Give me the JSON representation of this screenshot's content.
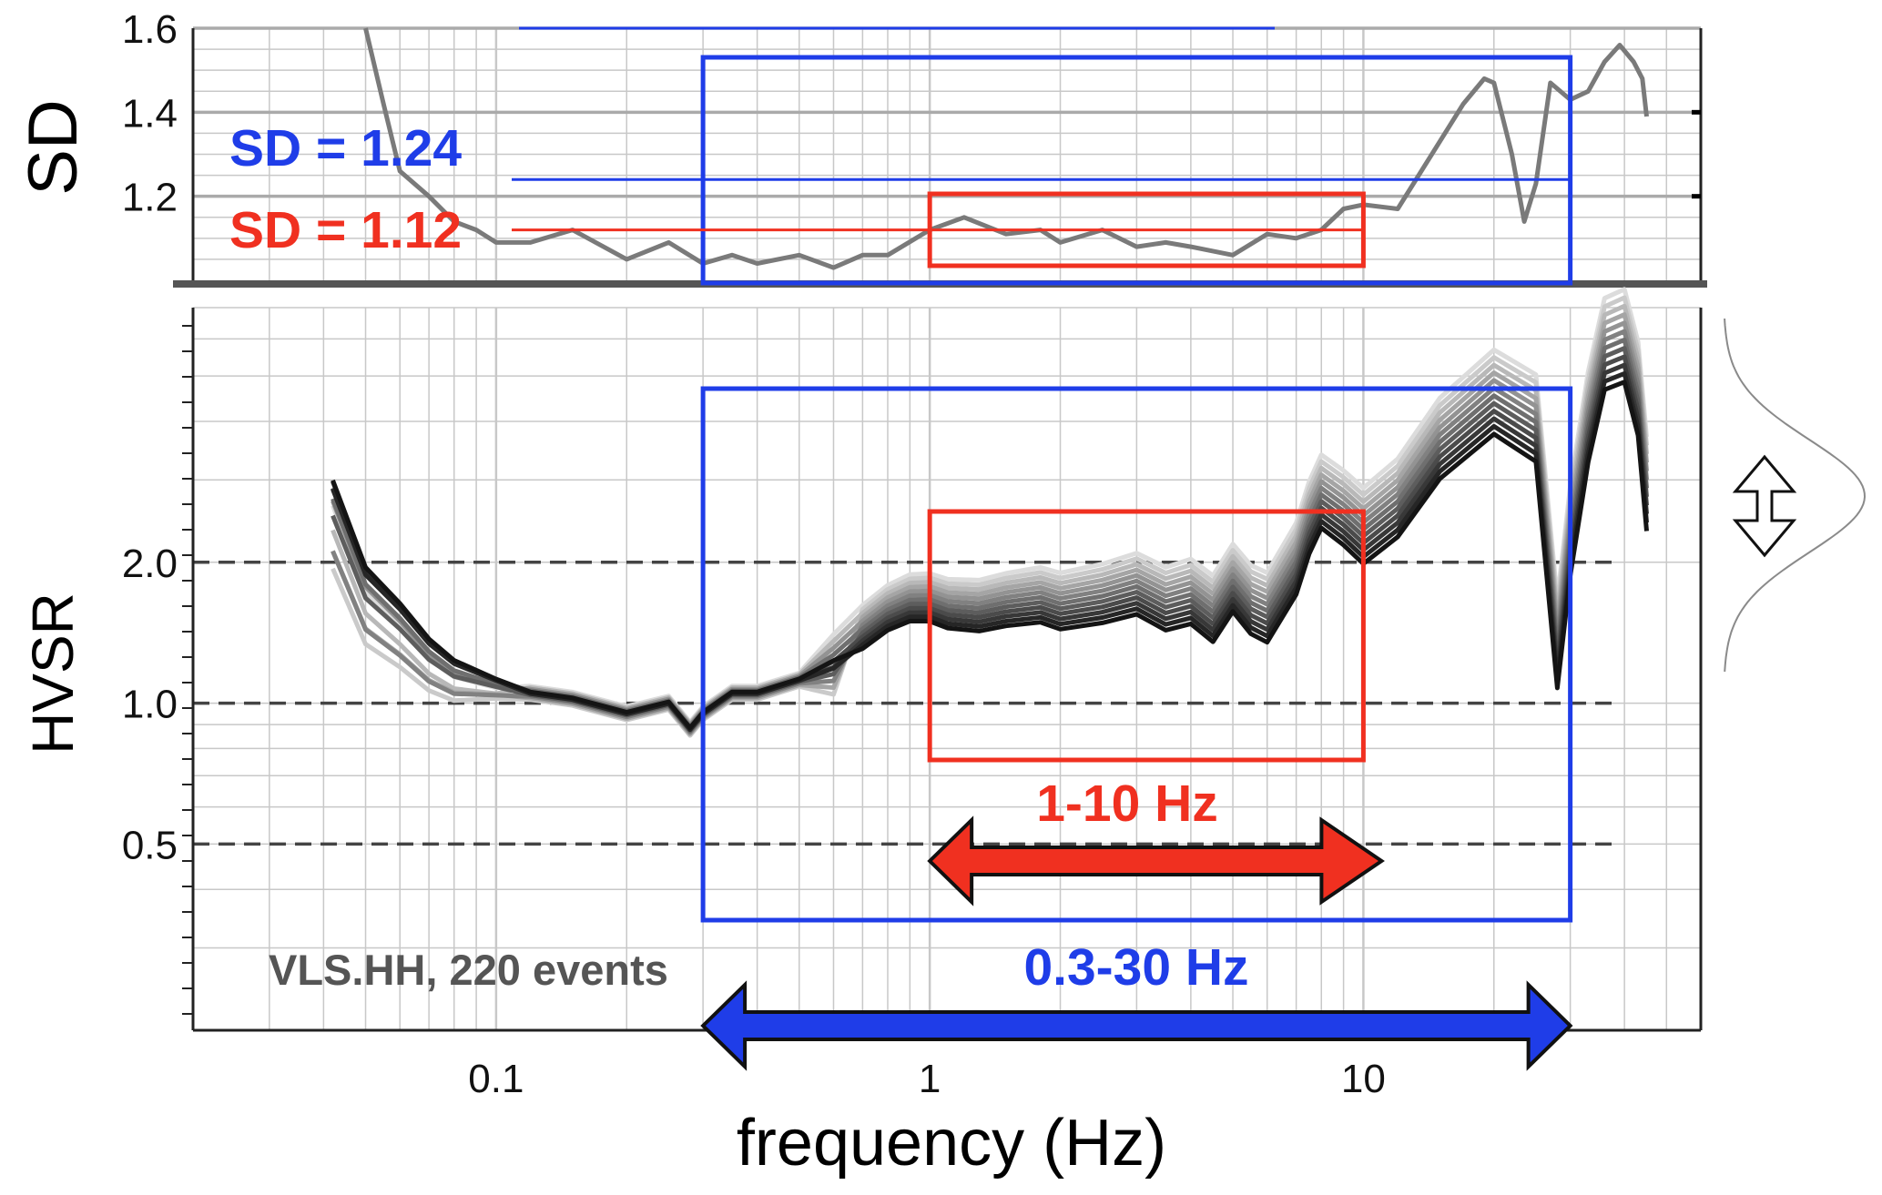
{
  "chart_data": [
    {
      "panel": "top",
      "type": "line",
      "ylabel": "SD",
      "xscale": "log",
      "xlim": [
        0.02,
        60
      ],
      "ylim": [
        1.0,
        1.6
      ],
      "yticks": [
        "1.2",
        "1.4",
        "1.6"
      ],
      "grid": true,
      "series": [
        {
          "x": [
            0.05,
            0.055,
            0.06,
            0.07,
            0.08,
            0.09,
            0.1,
            0.12,
            0.15,
            0.2,
            0.25,
            0.3,
            0.35,
            0.4,
            0.5,
            0.6,
            0.7,
            0.8,
            1.0,
            1.2,
            1.5,
            1.8,
            2.0,
            2.5,
            3.0,
            3.5,
            4.0,
            5.0,
            6.0,
            7.0,
            8.0,
            9.0,
            10.0,
            12.0,
            15.0,
            17.0,
            19.0,
            20.0,
            22.0,
            23.5,
            25.0,
            27.0,
            30.0,
            33.0,
            36.0,
            39.0,
            42.0,
            44.0,
            45.0
          ],
          "values": [
            1.6,
            1.42,
            1.26,
            1.2,
            1.14,
            1.12,
            1.09,
            1.09,
            1.12,
            1.05,
            1.09,
            1.04,
            1.06,
            1.04,
            1.06,
            1.03,
            1.06,
            1.06,
            1.12,
            1.15,
            1.11,
            1.12,
            1.09,
            1.12,
            1.08,
            1.09,
            1.08,
            1.06,
            1.11,
            1.1,
            1.12,
            1.17,
            1.18,
            1.17,
            1.33,
            1.42,
            1.48,
            1.47,
            1.3,
            1.14,
            1.23,
            1.47,
            1.43,
            1.45,
            1.52,
            1.56,
            1.52,
            1.48,
            1.39
          ]
        }
      ],
      "annotations": {
        "blue_label": "SD = 1.24",
        "blue_value": 1.24,
        "blue_band_hz": [
          0.3,
          30
        ],
        "red_label": "SD = 1.12",
        "red_value": 1.12,
        "red_band_hz": [
          1,
          10
        ]
      }
    },
    {
      "panel": "bottom",
      "type": "line",
      "ylabel": "HVSR",
      "xlabel": "frequency (Hz)",
      "xscale": "log",
      "yscale": "log",
      "xlim": [
        0.02,
        60
      ],
      "ylim": [
        0.2,
        7.0
      ],
      "xticks": [
        "0.1",
        "1",
        "10"
      ],
      "yticks": [
        "0.5",
        "1.0",
        "2.0"
      ],
      "reference_lines": [
        0.5,
        1.0,
        2.0
      ],
      "grid": true,
      "base_curve": {
        "x": [
          0.042,
          0.05,
          0.06,
          0.07,
          0.08,
          0.1,
          0.12,
          0.15,
          0.2,
          0.25,
          0.28,
          0.3,
          0.35,
          0.4,
          0.5,
          0.6,
          0.7,
          0.8,
          0.9,
          1.0,
          1.1,
          1.3,
          1.5,
          1.8,
          2.0,
          2.5,
          3.0,
          3.5,
          4.0,
          4.5,
          5.0,
          5.5,
          6.0,
          7.0,
          7.5,
          8.0,
          9.0,
          10.0,
          12.0,
          15.0,
          20.0,
          25.0,
          28.0,
          30.0,
          33.0,
          36.0,
          40.0,
          43.0,
          45.0
        ],
        "values": [
          2.9,
          1.9,
          1.6,
          1.35,
          1.22,
          1.12,
          1.05,
          1.02,
          0.95,
          1.0,
          0.88,
          0.95,
          1.05,
          1.05,
          1.12,
          1.2,
          1.35,
          1.48,
          1.55,
          1.55,
          1.5,
          1.48,
          1.52,
          1.55,
          1.5,
          1.55,
          1.62,
          1.5,
          1.55,
          1.42,
          1.65,
          1.48,
          1.42,
          1.8,
          2.2,
          2.5,
          2.3,
          2.1,
          2.4,
          3.2,
          4.0,
          3.5,
          1.15,
          2.0,
          3.5,
          5.0,
          5.2,
          4.0,
          2.5
        ]
      },
      "ensemble_note": "12 curves spreading from black to light gray above 0.6 Hz",
      "annotations": {
        "station_label": "VLS.HH, 220 events",
        "red_band_label": "1-10 Hz",
        "red_band_hz": [
          1,
          10
        ],
        "blue_band_label": "0.3-30 Hz",
        "blue_band_hz": [
          0.3,
          30
        ]
      }
    }
  ],
  "colors": {
    "blue": "#1f3de8",
    "red": "#f03020",
    "sd_line": "#7a7a7a",
    "grid": "#c8c8c8"
  }
}
